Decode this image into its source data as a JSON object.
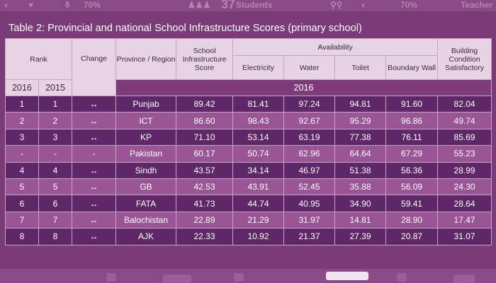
{
  "banner": {
    "top_texts": [
      "70%",
      "37",
      "Students",
      "70%",
      "Teacher"
    ]
  },
  "title": "Table 2: Provincial and national School Infrastructure Scores (primary school)",
  "headers": {
    "rank": "Rank",
    "change": "Change",
    "province": "Province / Region",
    "score": "School Infrastructure Score",
    "availability": "Availability",
    "electricity": "Electricity",
    "water": "Water",
    "toilet": "Toilet",
    "boundary": "Boundary Wall",
    "building": "Building Condition Satisfactory",
    "year_a": "2016",
    "year_b": "2015",
    "band_year": "2016"
  },
  "rows": [
    {
      "r2016": "1",
      "r2015": "1",
      "change": "↔",
      "province": "Punjab",
      "score": "89.42",
      "electricity": "81.41",
      "water": "97.24",
      "toilet": "94.81",
      "boundary": "91.60",
      "building": "82.04"
    },
    {
      "r2016": "2",
      "r2015": "2",
      "change": "↔",
      "province": "ICT",
      "score": "86.60",
      "electricity": "98.43",
      "water": "92.67",
      "toilet": "95.29",
      "boundary": "96.86",
      "building": "49.74"
    },
    {
      "r2016": "3",
      "r2015": "3",
      "change": "↔",
      "province": "KP",
      "score": "71.10",
      "electricity": "53.14",
      "water": "63.19",
      "toilet": "77.38",
      "boundary": "76.11",
      "building": "85.69"
    },
    {
      "r2016": "-",
      "r2015": "-",
      "change": "-",
      "province": "Pakistan",
      "score": "60.17",
      "electricity": "50.74",
      "water": "62.96",
      "toilet": "64.64",
      "boundary": "67.29",
      "building": "55.23"
    },
    {
      "r2016": "4",
      "r2015": "4",
      "change": "↔",
      "province": "Sindh",
      "score": "43.57",
      "electricity": "34.14",
      "water": "46.97",
      "toilet": "51.38",
      "boundary": "56.36",
      "building": "28.99"
    },
    {
      "r2016": "5",
      "r2015": "5",
      "change": "↔",
      "province": "GB",
      "score": "42.53",
      "electricity": "43.91",
      "water": "52.45",
      "toilet": "35.88",
      "boundary": "56.09",
      "building": "24.30"
    },
    {
      "r2016": "6",
      "r2015": "6",
      "change": "↔",
      "province": "FATA",
      "score": "41.73",
      "electricity": "44.74",
      "water": "40.95",
      "toilet": "34.90",
      "boundary": "59.41",
      "building": "28.64"
    },
    {
      "r2016": "7",
      "r2015": "7",
      "change": "↔",
      "province": "Balochistan",
      "score": "22.89",
      "electricity": "21.29",
      "water": "31.97",
      "toilet": "14.81",
      "boundary": "28.90",
      "building": "17.47"
    },
    {
      "r2016": "8",
      "r2015": "8",
      "change": "↔",
      "province": "AJK",
      "score": "22.33",
      "electricity": "10.92",
      "water": "21.37",
      "toilet": "27.39",
      "boundary": "20.87",
      "building": "31.07"
    }
  ]
}
